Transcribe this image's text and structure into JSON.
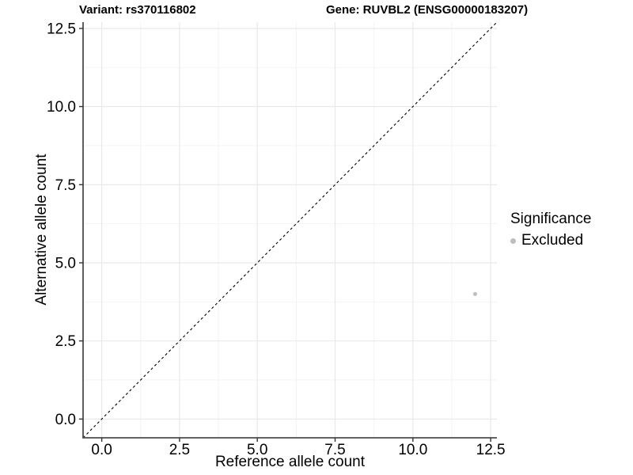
{
  "chart_data": {
    "type": "scatter",
    "titles": {
      "left": "Variant: rs370116802",
      "right": "Gene: RUVBL2 (ENSG00000183207)"
    },
    "xlabel": "Reference allele count",
    "ylabel": "Alternative allele count",
    "xlim": [
      -0.6,
      12.7
    ],
    "ylim": [
      -0.6,
      12.7
    ],
    "xticks": [
      0.0,
      2.5,
      5.0,
      7.5,
      10.0,
      12.5
    ],
    "yticks": [
      0.0,
      2.5,
      5.0,
      7.5,
      10.0,
      12.5
    ],
    "minor_xticks": [
      1.25,
      3.75,
      6.25,
      8.75,
      11.25
    ],
    "minor_yticks": [
      1.25,
      3.75,
      6.25,
      8.75,
      11.25
    ],
    "tick_label_decimals": 1,
    "grid": true,
    "legend_position": "right",
    "identity_line": {
      "type": "dashed",
      "slope": 1,
      "intercept": 0,
      "color": "#000000"
    },
    "points": [
      {
        "x": 12,
        "y": 4,
        "significance": "Excluded"
      }
    ],
    "legend": {
      "title": "Significance",
      "items": [
        {
          "label": "Excluded",
          "color": "#bebebe"
        }
      ]
    },
    "colors": {
      "point": "#bebebe",
      "grid_major": "#e7e7e7",
      "grid_minor": "#f2f2f2",
      "axis_line": "#4d4d4d",
      "tick_mark": "#333333",
      "text": "#000000"
    }
  }
}
